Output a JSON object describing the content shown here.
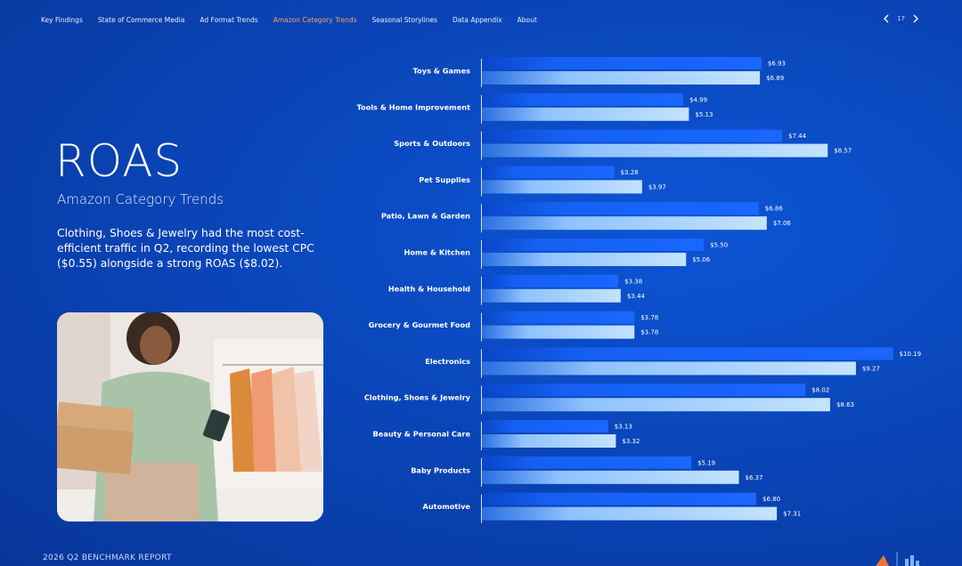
{
  "nav": {
    "items": [
      "Key Findings",
      "State of Commerce Media",
      "Ad Format Trends",
      "Amazon Category Trends",
      "Seasonal Storylines",
      "Data Appendix",
      "About"
    ],
    "active": 3,
    "page": "17"
  },
  "header": {
    "title": "ROAS",
    "subtitle": "Amazon Category Trends",
    "body": "Clothing, Shoes & Jewelry had the most cost-efficient traffic in Q2, recording the lowest CPC ($0.55) alongside a strong ROAS ($8.02)."
  },
  "footer": {
    "text": "2026 Q2 BENCHMARK REPORT"
  },
  "chart_data": {
    "type": "bar",
    "orientation": "horizontal",
    "categories": [
      "Toys & Games",
      "Tools & Home Improvement",
      "Sports & Outdoors",
      "Pet Supplies",
      "Patio, Lawn & Garden",
      "Home & Kitchen",
      "Health & Household",
      "Grocery & Gourmet Food",
      "Electronics",
      "Clothing, Shoes & Jewelry",
      "Beauty & Personal Care",
      "Baby Products",
      "Automotive"
    ],
    "series": [
      {
        "color": "#1560f2",
        "values": [
          6.93,
          4.99,
          7.44,
          3.28,
          6.86,
          5.5,
          3.38,
          3.78,
          10.19,
          8.02,
          3.13,
          5.19,
          6.8
        ],
        "value_labels": [
          "$6.93",
          "$4.99",
          "$7.44",
          "$3.28",
          "$6.86",
          "$5.50",
          "$3.38",
          "$3.78",
          "$10.19",
          "$8.02",
          "$3.13",
          "$5.19",
          "$6.80"
        ]
      },
      {
        "color": "#b4dcff",
        "values": [
          6.89,
          5.13,
          8.57,
          3.97,
          7.06,
          5.06,
          3.44,
          3.78,
          9.27,
          8.63,
          3.32,
          6.37,
          7.31
        ],
        "value_labels": [
          "$6.89",
          "$5.13",
          "$8.57",
          "$3.97",
          "$7.06",
          "$5.06",
          "$3.44",
          "$3.78",
          "$9.27",
          "$8.63",
          "$3.32",
          "$6.37",
          "$7.31"
        ]
      }
    ]
  }
}
